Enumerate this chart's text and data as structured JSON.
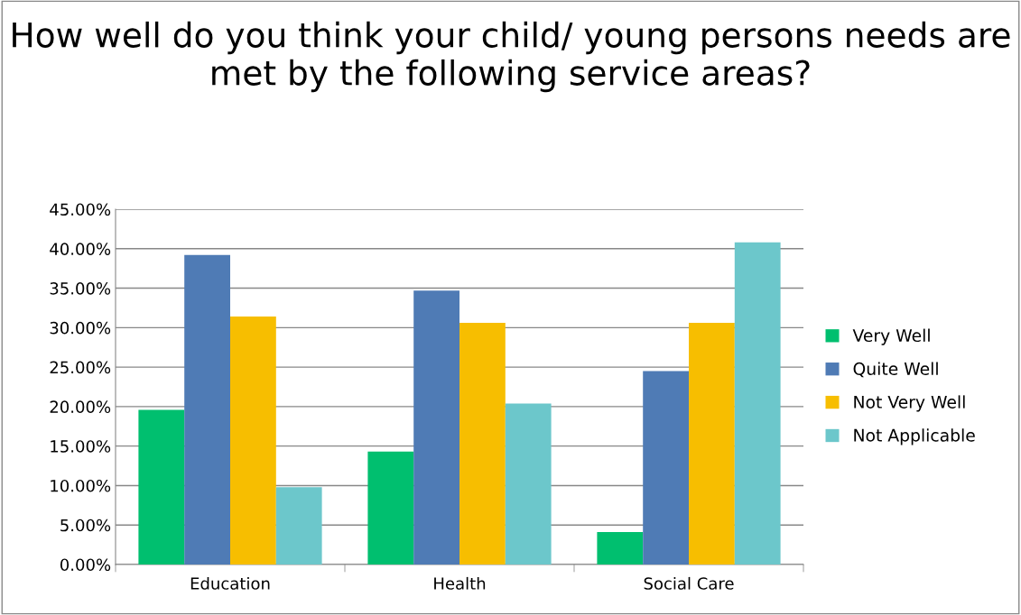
{
  "chart_data": {
    "type": "bar",
    "title": "How well do you think your child/ young persons needs are met by the following service areas?",
    "categories": [
      "Education",
      "Health",
      "Social Care"
    ],
    "series": [
      {
        "name": "Very Well",
        "color": "#00bf6f",
        "values": [
          0.196,
          0.143,
          0.041
        ]
      },
      {
        "name": "Quite Well",
        "color": "#4f7bb5",
        "values": [
          0.392,
          0.347,
          0.245
        ]
      },
      {
        "name": "Not Very Well",
        "color": "#f7be00",
        "values": [
          0.314,
          0.306,
          0.306
        ]
      },
      {
        "name": "Not Applicable",
        "color": "#6cc7cb",
        "values": [
          0.098,
          0.204,
          0.408
        ]
      }
    ],
    "ylim": [
      0,
      0.45
    ],
    "yticks": [
      {
        "value": 0,
        "label": "0.00%"
      },
      {
        "value": 0.05,
        "label": "5.00%"
      },
      {
        "value": 0.1,
        "label": "10.00%"
      },
      {
        "value": 0.15,
        "label": "15.00%"
      },
      {
        "value": 0.2,
        "label": "20.00%"
      },
      {
        "value": 0.25,
        "label": "25.00%"
      },
      {
        "value": 0.3,
        "label": "30.00%"
      },
      {
        "value": 0.35,
        "label": "35.00%"
      },
      {
        "value": 0.4,
        "label": "40.00%"
      },
      {
        "value": 0.45,
        "label": "45.00%"
      }
    ],
    "grid": "y",
    "legend": "right"
  }
}
